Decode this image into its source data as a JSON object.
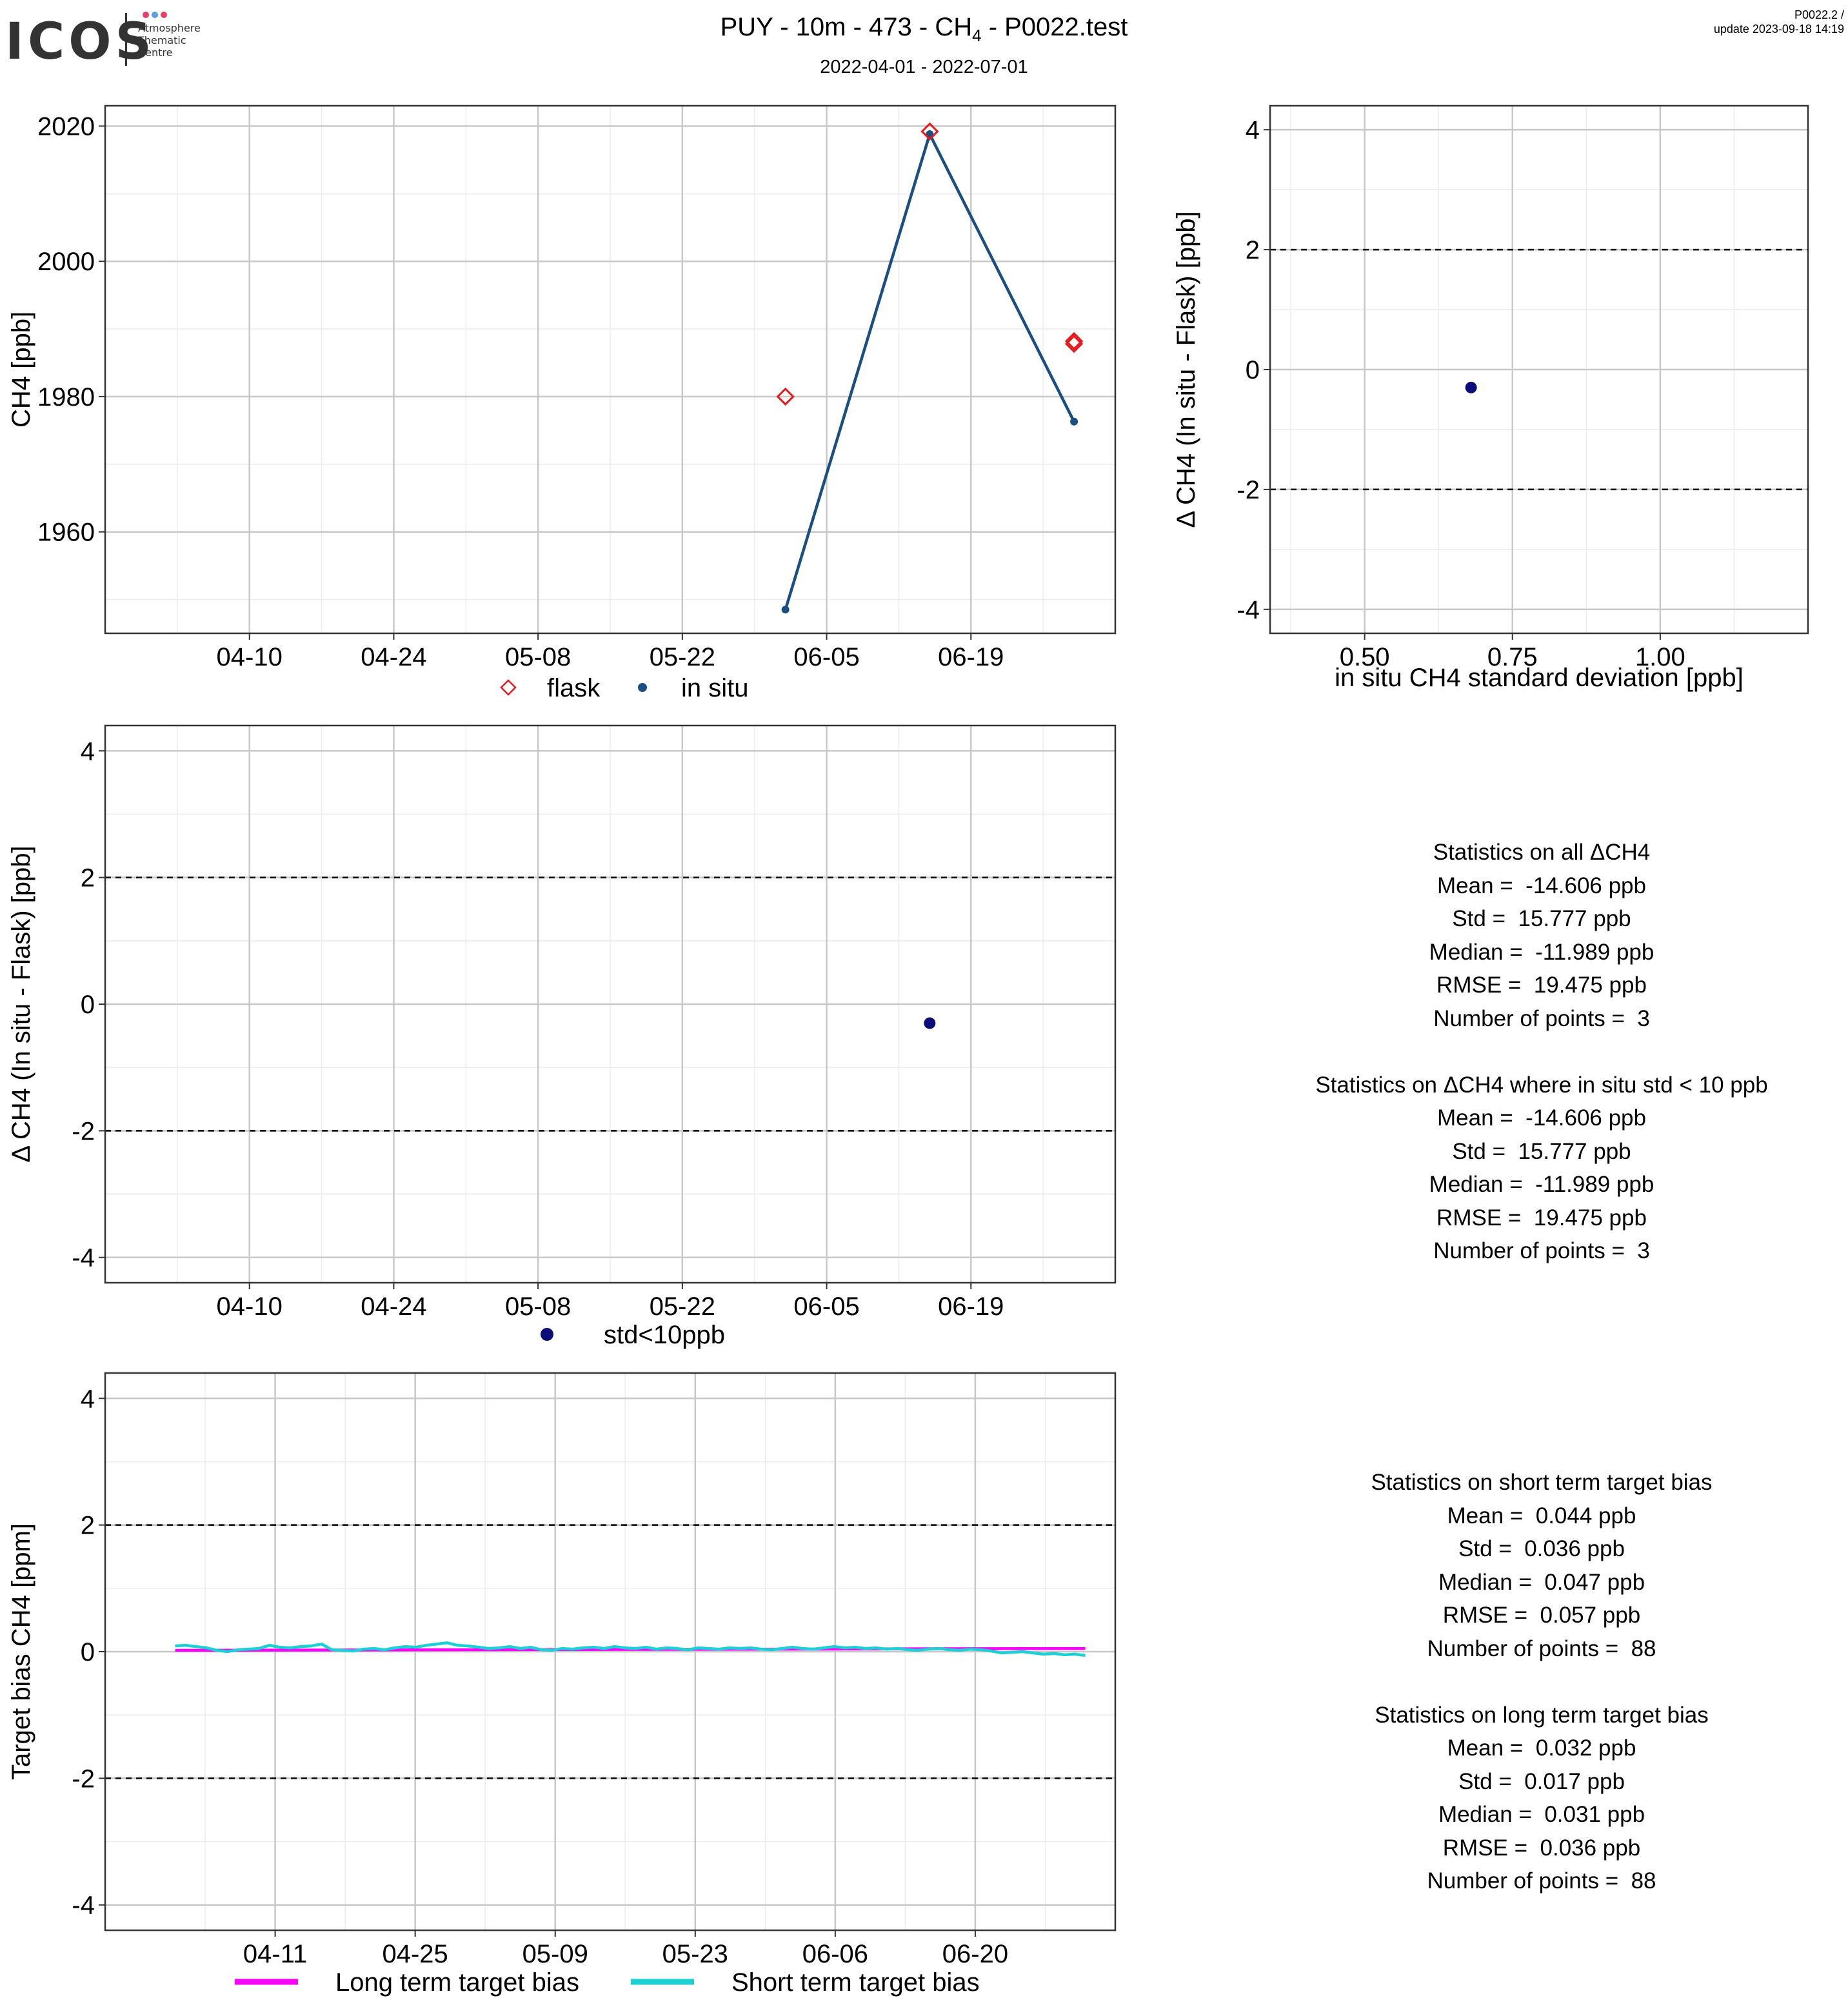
{
  "header": {
    "logo_text": "ICOS",
    "logo_sub": [
      "Atmosphere",
      "Thematic",
      "Centre"
    ],
    "logo_dot_colors": [
      "#e63f6b",
      "#5aa0d8",
      "#e63f6b"
    ],
    "title_prefix": "PUY - 10m - 473 - CH",
    "title_sub": "4",
    "title_suffix": " - P0022.test",
    "date_range": "2022-04-01 - 2022-07-01",
    "corner_line1": "P0022.2 /",
    "corner_line2": "update  2023-09-18 14:19"
  },
  "colors": {
    "flask": "#e8191d",
    "insitu": "#1b4f82",
    "delta_point": "#0b0d78",
    "long_term": "#ff00ff",
    "short_term": "#1cd1d6",
    "grid_major": "#c8c8c8",
    "grid_minor": "#ececec"
  },
  "chart_data": [
    {
      "type": "line",
      "ylabel": "CH4 [ppb]",
      "x_ticks": [
        "04-10",
        "04-24",
        "05-08",
        "05-22",
        "06-05",
        "06-19"
      ],
      "yticks": [
        "1960",
        "1980",
        "2000",
        "2020"
      ],
      "ylim": [
        1945,
        2023
      ],
      "series": [
        {
          "name": "flask",
          "marker": "diamond-open",
          "points": [
            [
              "2022-06-01",
              1980.0
            ],
            [
              "2022-06-15",
              2019.2
            ],
            [
              "2022-06-29",
              1988.2
            ],
            [
              "2022-06-29",
              1987.8
            ]
          ]
        },
        {
          "name": "in situ",
          "marker": "dot-line",
          "points": [
            [
              "2022-06-01",
              1948.5
            ],
            [
              "2022-06-15",
              2018.8
            ],
            [
              "2022-06-29",
              1976.3
            ]
          ]
        }
      ],
      "legend": [
        "flask",
        "in situ"
      ],
      "legend_position": "bottom"
    },
    {
      "type": "scatter",
      "xlabel": "in situ CH4 standard deviation [ppb]",
      "ylabel": "Δ CH4 (In situ - Flask) [ppb]",
      "x_ticks": [
        "0.50",
        "0.75",
        "1.00"
      ],
      "yticks": [
        "-4",
        "-2",
        "0",
        "2",
        "4"
      ],
      "xlim": [
        0.34,
        1.25
      ],
      "ylim": [
        -4.4,
        4.4
      ],
      "reference_lines": [
        -2,
        2
      ],
      "points": [
        [
          0.68,
          -0.3
        ]
      ]
    },
    {
      "type": "scatter",
      "ylabel": "Δ CH4 (In situ - Flask) [ppb]",
      "x_ticks": [
        "04-10",
        "04-24",
        "05-08",
        "05-22",
        "06-05",
        "06-19"
      ],
      "yticks": [
        "-4",
        "-2",
        "0",
        "2",
        "4"
      ],
      "ylim": [
        -4.4,
        4.4
      ],
      "reference_lines": [
        -2,
        2
      ],
      "points": [
        [
          "2022-06-15",
          -0.3
        ]
      ],
      "legend": [
        "std<10ppb"
      ],
      "legend_position": "bottom"
    },
    {
      "type": "line",
      "ylabel": "Target bias CH4 [ppm]",
      "x_ticks": [
        "04-11",
        "04-25",
        "05-09",
        "05-23",
        "06-06",
        "06-20"
      ],
      "yticks": [
        "-4",
        "-2",
        "0",
        "2",
        "4"
      ],
      "ylim": [
        -4.4,
        4.4
      ],
      "reference_lines": [
        -2,
        2
      ],
      "series": [
        {
          "name": "Long term target bias",
          "start": "2022-04-01",
          "end": "2022-07-01",
          "values": [
            0.02,
            0.05
          ]
        },
        {
          "name": "Short term target bias",
          "start": "2022-04-01",
          "end": "2022-07-01",
          "values": [
            0.09,
            0.1,
            0.08,
            0.06,
            0.02,
            0.0,
            0.03,
            0.04,
            0.05,
            0.1,
            0.07,
            0.06,
            0.08,
            0.09,
            0.12,
            0.03,
            0.02,
            0.01,
            0.04,
            0.05,
            0.03,
            0.06,
            0.08,
            0.07,
            0.1,
            0.12,
            0.14,
            0.1,
            0.09,
            0.07,
            0.05,
            0.06,
            0.08,
            0.05,
            0.07,
            0.03,
            0.02,
            0.05,
            0.04,
            0.06,
            0.07,
            0.05,
            0.08,
            0.06,
            0.05,
            0.07,
            0.04,
            0.06,
            0.05,
            0.03,
            0.06,
            0.05,
            0.04,
            0.06,
            0.05,
            0.06,
            0.04,
            0.03,
            0.05,
            0.07,
            0.05,
            0.04,
            0.06,
            0.08,
            0.06,
            0.07,
            0.05,
            0.06,
            0.04,
            0.05,
            0.03,
            0.02,
            0.04,
            0.05,
            0.03,
            0.02,
            0.04,
            0.03,
            0.01,
            -0.02,
            -0.01,
            0.0,
            -0.02,
            -0.04,
            -0.03,
            -0.05,
            -0.04,
            -0.06
          ]
        }
      ],
      "legend": [
        "Long term target bias",
        "Short term target bias"
      ],
      "legend_position": "bottom"
    }
  ],
  "stats_delta": {
    "all_title": "Statistics on all ΔCH4",
    "all_lines": [
      "Mean =  -14.606 ppb",
      "Std =  15.777 ppb",
      "Median =  -11.989 ppb",
      "RMSE =  19.475 ppb",
      "Number of points =  3"
    ],
    "std_title": "Statistics on ΔCH4 where in situ std < 10 ppb",
    "std_lines": [
      "Mean =  -14.606 ppb",
      "Std =  15.777 ppb",
      "Median =  -11.989 ppb",
      "RMSE =  19.475 ppb",
      "Number of points =  3"
    ]
  },
  "stats_target": {
    "short_title": "Statistics on short term target bias",
    "short_lines": [
      "Mean =  0.044 ppb",
      "Std =  0.036 ppb",
      "Median =  0.047 ppb",
      "RMSE =  0.057 ppb",
      "Number of points =  88"
    ],
    "long_title": "Statistics on long term target bias",
    "long_lines": [
      "Mean =  0.032 ppb",
      "Std =  0.017 ppb",
      "Median =  0.031 ppb",
      "RMSE =  0.036 ppb",
      "Number of points =  88"
    ]
  }
}
